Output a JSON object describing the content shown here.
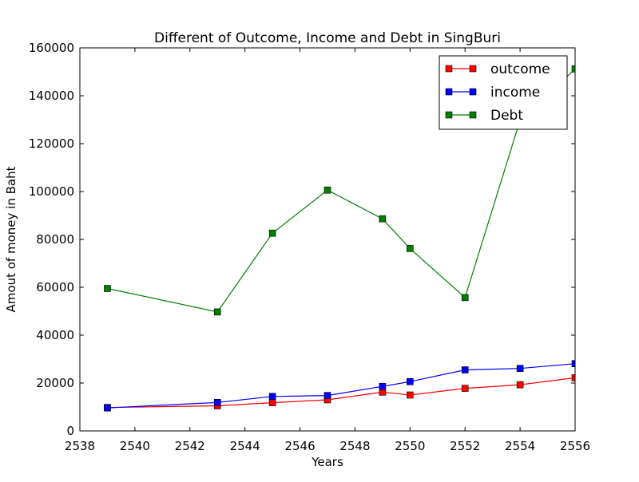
{
  "chart_data": {
    "type": "line",
    "title": "Different of Outcome, Income and Debt in SingBuri",
    "xlabel": "Years",
    "ylabel": "Amout of money in Baht",
    "xlim": [
      2538,
      2556
    ],
    "ylim": [
      0,
      160000
    ],
    "xticks": [
      2538,
      2540,
      2542,
      2544,
      2546,
      2548,
      2550,
      2552,
      2554,
      2556
    ],
    "yticks": [
      0,
      20000,
      40000,
      60000,
      80000,
      100000,
      120000,
      140000,
      160000
    ],
    "grid": false,
    "legend_position": "top-right",
    "series": [
      {
        "name": "outcome",
        "color": "#ff0000",
        "x": [
          2539,
          2543,
          2545,
          2547,
          2549,
          2550,
          2552,
          2554,
          2556
        ],
        "y": [
          9800,
          10500,
          11800,
          13000,
          16200,
          15000,
          17800,
          19300,
          22200
        ]
      },
      {
        "name": "income",
        "color": "#0000ff",
        "x": [
          2539,
          2543,
          2545,
          2547,
          2549,
          2550,
          2552,
          2554,
          2556
        ],
        "y": [
          9600,
          11900,
          14400,
          14800,
          18600,
          20600,
          25500,
          26100,
          28100
        ]
      },
      {
        "name": "Debt",
        "color": "#008000",
        "x": [
          2539,
          2543,
          2545,
          2547,
          2549,
          2550,
          2552,
          2554,
          2556
        ],
        "y": [
          59500,
          49700,
          82600,
          100600,
          88600,
          76200,
          55700,
          129800,
          151200
        ]
      }
    ]
  }
}
